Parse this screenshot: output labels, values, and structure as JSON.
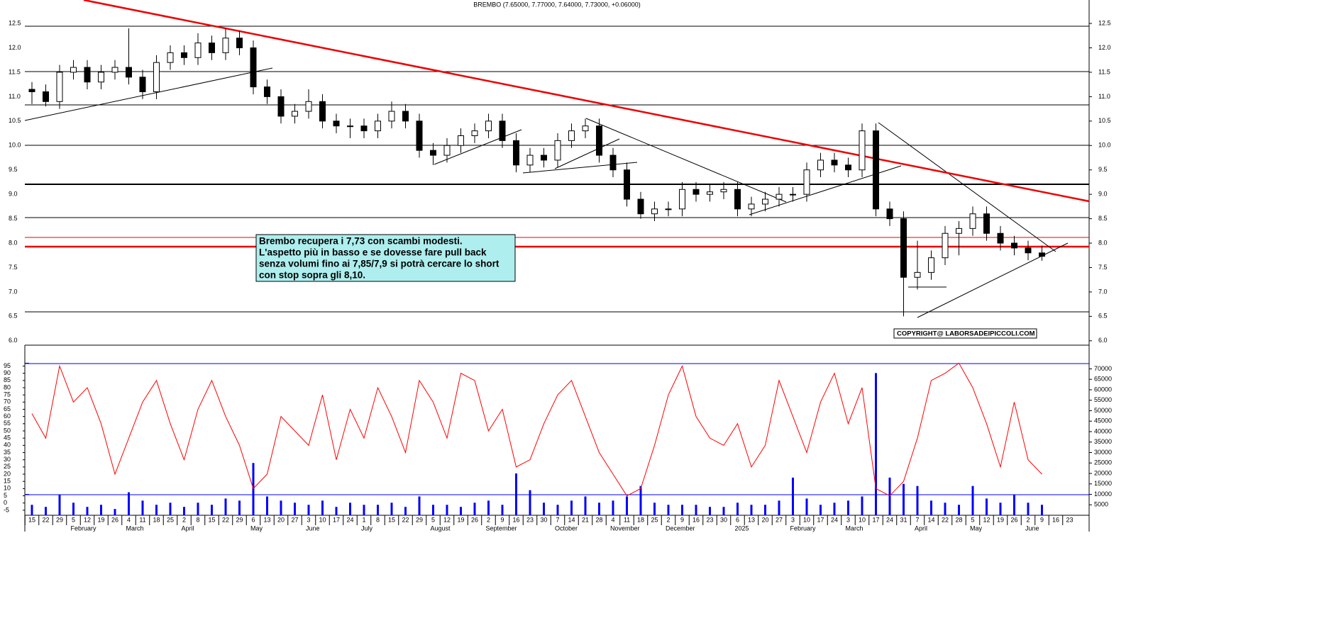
{
  "chart_data": {
    "type": "candlestick",
    "title": "BREMBO (7.65000, 7.77000, 7.64000, 7.73000, +0.06000)",
    "annotation": [
      "Brembo recupera i 7,73 con scambi modesti.",
      "L'aspetto più in basso e se dovesse fare pull back",
      "senza volumi fino ai 7,85/7,9 si potrà cercare lo short",
      "con stop sopra gli 8,10."
    ],
    "copyright": "COPYRIGHT@ LABORSADEIPICCOLI.COM",
    "x_labels": [
      "15",
      "22",
      "29",
      "5",
      "12",
      "19",
      "26",
      "4",
      "11",
      "18",
      "25",
      "2",
      "8",
      "15",
      "22",
      "29",
      "6",
      "13",
      "20",
      "27",
      "3",
      "10",
      "17",
      "24",
      "1",
      "8",
      "15",
      "22",
      "29",
      "5",
      "12",
      "19",
      "26",
      "2",
      "9",
      "16",
      "23",
      "30",
      "7",
      "14",
      "21",
      "28",
      "4",
      "11",
      "18",
      "25",
      "2",
      "9",
      "16",
      "23",
      "30",
      "6",
      "13",
      "20",
      "27",
      "3",
      "10",
      "17",
      "24",
      "3",
      "10",
      "17",
      "24",
      "31",
      "7",
      "14",
      "22",
      "28",
      "5",
      "12",
      "19",
      "26",
      "2",
      "9",
      "16",
      "23"
    ],
    "month_labels": [
      null,
      null,
      null,
      "February",
      null,
      null,
      null,
      "March",
      null,
      null,
      null,
      "April",
      null,
      null,
      null,
      null,
      "May",
      null,
      null,
      null,
      "June",
      null,
      null,
      null,
      "July",
      null,
      null,
      null,
      null,
      "August",
      null,
      null,
      null,
      "September",
      null,
      null,
      null,
      null,
      "October",
      null,
      null,
      null,
      "November",
      null,
      null,
      null,
      "December",
      null,
      null,
      null,
      null,
      "2025",
      null,
      null,
      null,
      "February",
      null,
      null,
      null,
      "March",
      null,
      null,
      null,
      null,
      "April",
      null,
      null,
      null,
      "May",
      null,
      null,
      null,
      "June",
      null,
      null,
      null
    ],
    "open": [
      11.15,
      11.1,
      10.9,
      11.5,
      11.6,
      11.3,
      11.5,
      11.6,
      11.4,
      11.1,
      11.7,
      11.9,
      11.8,
      12.1,
      11.9,
      12.2,
      12.0,
      11.2,
      11.0,
      10.6,
      10.7,
      10.9,
      10.5,
      10.4,
      10.4,
      10.3,
      10.5,
      10.7,
      10.5,
      9.9,
      9.8,
      10.0,
      10.2,
      10.3,
      10.5,
      10.1,
      9.6,
      9.8,
      9.7,
      10.1,
      10.3,
      10.4,
      9.8,
      9.5,
      8.9,
      8.6,
      8.7,
      8.7,
      9.1,
      9.0,
      9.05,
      9.1,
      8.7,
      8.8,
      8.9,
      9.0,
      9.0,
      9.5,
      9.7,
      9.6,
      9.5,
      10.3,
      8.7,
      8.5,
      7.3,
      7.4,
      7.7,
      8.2,
      8.3,
      8.6,
      8.2,
      8.0,
      7.9,
      7.8
    ],
    "high": [
      11.3,
      11.25,
      11.65,
      11.75,
      11.75,
      11.65,
      11.75,
      12.4,
      11.55,
      11.85,
      12.05,
      12.05,
      12.3,
      12.25,
      12.4,
      12.35,
      12.15,
      11.35,
      11.15,
      10.85,
      11.15,
      11.05,
      10.65,
      10.55,
      10.55,
      10.65,
      10.9,
      10.85,
      10.65,
      10.05,
      10.15,
      10.35,
      10.45,
      10.65,
      10.65,
      10.25,
      9.95,
      9.95,
      10.25,
      10.45,
      10.55,
      10.55,
      9.95,
      9.65,
      9.05,
      8.85,
      8.85,
      9.25,
      9.25,
      9.2,
      9.25,
      9.25,
      8.95,
      9.05,
      9.15,
      9.15,
      9.65,
      9.85,
      9.85,
      9.75,
      10.45,
      10.45,
      8.85,
      8.65,
      8.05,
      7.85,
      8.35,
      8.45,
      8.75,
      8.75,
      8.35,
      8.15,
      8.05,
      7.95
    ],
    "low": [
      10.85,
      10.8,
      10.75,
      11.35,
      11.15,
      11.15,
      11.35,
      11.25,
      10.95,
      10.95,
      11.55,
      11.65,
      11.65,
      11.75,
      11.75,
      11.85,
      11.05,
      10.85,
      10.45,
      10.45,
      10.55,
      10.35,
      10.25,
      10.15,
      10.15,
      10.15,
      10.35,
      10.35,
      9.75,
      9.6,
      9.65,
      9.85,
      10.05,
      10.15,
      9.95,
      9.45,
      9.45,
      9.55,
      9.55,
      9.95,
      10.15,
      9.65,
      9.35,
      8.75,
      8.5,
      8.45,
      8.55,
      8.55,
      8.85,
      8.85,
      8.9,
      8.55,
      8.55,
      8.65,
      8.75,
      8.85,
      8.85,
      9.35,
      9.45,
      9.35,
      9.35,
      8.55,
      8.35,
      6.5,
      7.05,
      7.25,
      7.55,
      7.75,
      8.15,
      8.05,
      7.85,
      7.75,
      7.65,
      7.64
    ],
    "close": [
      11.1,
      10.9,
      11.5,
      11.6,
      11.3,
      11.5,
      11.6,
      11.4,
      11.1,
      11.7,
      11.9,
      11.8,
      12.1,
      11.9,
      12.2,
      12.0,
      11.2,
      11.0,
      10.6,
      10.7,
      10.9,
      10.5,
      10.4,
      10.4,
      10.3,
      10.5,
      10.7,
      10.5,
      9.9,
      9.8,
      10.0,
      10.2,
      10.3,
      10.5,
      10.1,
      9.6,
      9.8,
      9.7,
      10.1,
      10.3,
      10.4,
      9.8,
      9.5,
      8.9,
      8.6,
      8.7,
      8.7,
      9.1,
      9.0,
      9.05,
      9.1,
      8.7,
      8.8,
      8.9,
      9.0,
      9.0,
      9.5,
      9.7,
      9.6,
      9.5,
      10.3,
      8.7,
      8.5,
      7.3,
      7.4,
      7.7,
      8.2,
      8.3,
      8.6,
      8.2,
      8.0,
      7.9,
      7.8,
      7.73
    ],
    "ylim": [
      5.91,
      12.98
    ],
    "yticks": [
      {
        "value": 6.0,
        "label": "6.0"
      },
      6.5,
      {
        "value": 7.0,
        "label": "7.0"
      },
      7.5,
      {
        "value": 8.0,
        "label": "8.0"
      },
      8.5,
      {
        "value": 9.0,
        "label": "9.0"
      },
      9.5,
      {
        "value": 10.0,
        "label": "10.0"
      },
      10.5,
      {
        "value": 11.0,
        "label": "11.0"
      },
      11.5,
      {
        "value": 12.0,
        "label": "12.0"
      },
      12.5
    ],
    "oscillator": {
      "color": "#ff0000",
      "values": [
        62,
        45,
        95,
        70,
        80,
        55,
        20,
        45,
        70,
        85,
        55,
        30,
        65,
        85,
        60,
        40,
        10,
        20,
        60,
        50,
        40,
        75,
        30,
        65,
        45,
        80,
        60,
        35,
        85,
        70,
        45,
        90,
        85,
        50,
        65,
        25,
        30,
        55,
        75,
        85,
        60,
        35,
        20,
        5,
        10,
        40,
        75,
        95,
        60,
        45,
        40,
        55,
        25,
        40,
        85,
        60,
        35,
        70,
        90,
        55,
        80,
        10,
        5,
        15,
        45,
        85,
        90,
        97,
        80,
        55,
        25,
        70,
        30,
        20
      ],
      "ylim": [
        -8.5,
        109
      ],
      "yticks": [
        -5,
        0,
        5,
        10,
        15,
        20,
        25,
        30,
        35,
        40,
        45,
        50,
        55,
        60,
        65,
        70,
        75,
        80,
        85,
        90,
        95
      ],
      "levels": [
        97,
        6
      ]
    },
    "volume": {
      "color": "#0000ff",
      "axis": "y2",
      "values": [
        5000,
        4000,
        10000,
        6000,
        4000,
        5000,
        3000,
        11000,
        7000,
        5000,
        6000,
        4000,
        6000,
        5000,
        8000,
        7000,
        25000,
        9000,
        7000,
        6000,
        5000,
        7000,
        4000,
        6000,
        5000,
        5000,
        6000,
        4000,
        9000,
        5000,
        5000,
        4000,
        6000,
        7000,
        5000,
        20000,
        12000,
        6000,
        5000,
        7000,
        9000,
        6000,
        7000,
        9000,
        14000,
        6000,
        5000,
        5000,
        5000,
        4000,
        4000,
        6000,
        5000,
        5000,
        7000,
        18000,
        8000,
        5000,
        6000,
        7000,
        9000,
        68000,
        18000,
        15000,
        14000,
        7000,
        6000,
        5000,
        14000,
        8000,
        6000,
        10000,
        6000,
        5000
      ]
    },
    "y2lim": [
      0,
      81000
    ],
    "y2ticks": [
      5000,
      10000,
      15000,
      20000,
      25000,
      30000,
      35000,
      40000,
      45000,
      50000,
      55000,
      60000,
      65000,
      70000
    ]
  }
}
